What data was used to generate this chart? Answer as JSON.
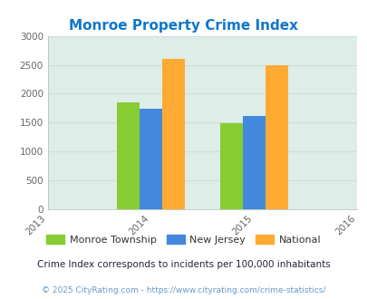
{
  "title": "Monroe Property Crime Index",
  "years": [
    2014,
    2015
  ],
  "x_ticks": [
    2013,
    2014,
    2015,
    2016
  ],
  "series": {
    "Monroe Township": [
      1850,
      1490
    ],
    "New Jersey": [
      1740,
      1610
    ],
    "National": [
      2600,
      2490
    ]
  },
  "colors": {
    "Monroe Township": "#88cc33",
    "New Jersey": "#4488dd",
    "National": "#ffaa33"
  },
  "ylim": [
    0,
    3000
  ],
  "yticks": [
    0,
    500,
    1000,
    1500,
    2000,
    2500,
    3000
  ],
  "legend_labels": [
    "Monroe Township",
    "New Jersey",
    "National"
  ],
  "note": "Crime Index corresponds to incidents per 100,000 inhabitants",
  "footer": "© 2025 CityRating.com - https://www.cityrating.com/crime-statistics/",
  "bg_color": "#ddeee8",
  "bar_width": 0.22,
  "title_color": "#1177cc",
  "axis_label_color": "#666666",
  "note_color": "#222244",
  "footer_color": "#6699cc",
  "legend_text_color": "#333333",
  "grid_color": "#ccdddd"
}
